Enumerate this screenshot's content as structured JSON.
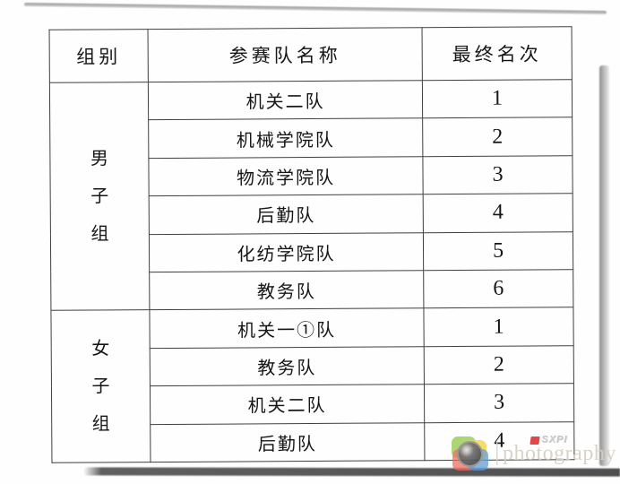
{
  "table": {
    "headers": [
      "组别",
      "参赛队名称",
      "最终名次"
    ],
    "groups": [
      {
        "name": "男子组",
        "rows": [
          {
            "team": "机关二队",
            "rank": "1"
          },
          {
            "team": "机械学院队",
            "rank": "2"
          },
          {
            "team": "物流学院队",
            "rank": "3"
          },
          {
            "team": "后勤队",
            "rank": "4"
          },
          {
            "team": "化纺学院队",
            "rank": "5"
          },
          {
            "team": "教务队",
            "rank": "6"
          }
        ]
      },
      {
        "name": "女子组",
        "rows": [
          {
            "team": "机关一①队",
            "rank": "1"
          },
          {
            "team": "教务队",
            "rank": "2"
          },
          {
            "team": "机关二队",
            "rank": "3"
          },
          {
            "team": "后勤队",
            "rank": "4"
          }
        ]
      }
    ]
  },
  "watermark": {
    "separator": "|",
    "brand": "photography",
    "logo_text": "SXPI",
    "icon_colors": {
      "green": "#8cc63e",
      "yellow": "#f2d02e",
      "red": "#ee6a5a",
      "blue": "#5b9bd5"
    }
  }
}
